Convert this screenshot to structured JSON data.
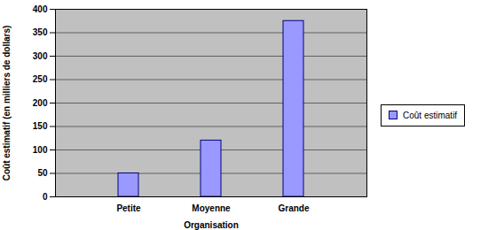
{
  "chart_data": {
    "type": "bar",
    "xlabel": "Organisation",
    "ylabel": "Coût estimatif (en milliers de dollars)",
    "categories": [
      "Petite",
      "Moyenne",
      "Grande"
    ],
    "series": [
      {
        "name": "Coût estimatif",
        "color": "#9999ff",
        "values": [
          50,
          120,
          375
        ]
      }
    ],
    "ylim": [
      0,
      400
    ],
    "yticks": [
      0,
      50,
      100,
      150,
      200,
      250,
      300,
      350,
      400
    ],
    "grid": true,
    "legend": "right"
  }
}
